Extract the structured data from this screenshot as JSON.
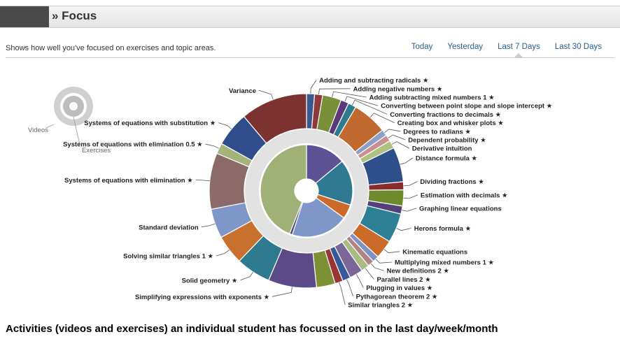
{
  "header": {
    "title": "» Focus"
  },
  "subtitle": "Shows how well you've focused on exercises and topic areas.",
  "tabs": [
    {
      "label": "Today",
      "active": false
    },
    {
      "label": "Yesterday",
      "active": false
    },
    {
      "label": "Last 7 Days",
      "active": true
    },
    {
      "label": "Last 30 Days",
      "active": false
    }
  ],
  "legend": {
    "videos_label": "Videos",
    "exercises_label": "Exercises"
  },
  "caption": "Activities (videos and exercises) an individual student has focussed on in the last day/week/month",
  "colors": {
    "link": "#2a5d8a",
    "header_dark": "#4a4a4a"
  },
  "chart_data": {
    "type": "pie",
    "title": "",
    "outer_ring": [
      {
        "label": "Adding and subtracting radicals ★",
        "value": 1.5,
        "color": "#3a5a8f"
      },
      {
        "label": "Adding negative numbers ★",
        "value": 1.5,
        "color": "#8f3a3a"
      },
      {
        "label": "Adding subtracting mixed numbers 1 ★",
        "value": 3.5,
        "color": "#7a8f3a"
      },
      {
        "label": "Converting between point slope and slope intercept ★",
        "value": 1.5,
        "color": "#5a3a7a"
      },
      {
        "label": "Converting fractions to decimals ★",
        "value": 1.5,
        "color": "#2f7a8f"
      },
      {
        "label": "Creating box and whisker plots ★",
        "value": 6.5,
        "color": "#c06a30"
      },
      {
        "label": "Degrees to radians ★",
        "value": 1.2,
        "color": "#8aa0c8"
      },
      {
        "label": "Dependent probability ★",
        "value": 1.2,
        "color": "#c89090"
      },
      {
        "label": "Derivative intuition",
        "value": 1.5,
        "color": "#b0c080"
      },
      {
        "label": "Distance formula ★",
        "value": 6.5,
        "color": "#2d4f8a"
      },
      {
        "label": "Dividing fractions ★",
        "value": 1.5,
        "color": "#8a2d2d"
      },
      {
        "label": "Estimation with decimals ★",
        "value": 3.0,
        "color": "#6f8a2d"
      },
      {
        "label": "Graphing linear equations",
        "value": 1.5,
        "color": "#54407a"
      },
      {
        "label": "Herons formula ★",
        "value": 5.5,
        "color": "#2d7f96"
      },
      {
        "label": "Kinematic equations",
        "value": 3.5,
        "color": "#cc6a2a"
      },
      {
        "label": "Multiplying mixed numbers 1 ★",
        "value": 1.2,
        "color": "#7c93c4"
      },
      {
        "label": "New definitions 2 ★",
        "value": 1.2,
        "color": "#b08484"
      },
      {
        "label": "Parallel lines 2 ★",
        "value": 1.5,
        "color": "#a8bb84"
      },
      {
        "label": "Plugging in values ★",
        "value": 2.5,
        "color": "#7a6699"
      },
      {
        "label": "Pythagorean theorem 2 ★",
        "value": 1.5,
        "color": "#355a9a"
      },
      {
        "label": "Similar triangles 2 ★",
        "value": 1.5,
        "color": "#9a3535"
      },
      {
        "label": "",
        "value": 3.5,
        "color": "#7d9035"
      },
      {
        "label": "Simplifying expressions with exponents ★",
        "value": 9.0,
        "color": "#5c4a88"
      },
      {
        "label": "Solid geometry ★",
        "value": 6.5,
        "color": "#2e7b90"
      },
      {
        "label": "Solving similar triangles 1 ★",
        "value": 5.5,
        "color": "#c8702d"
      },
      {
        "label": "Standard deviation",
        "value": 5.5,
        "color": "#7f97c8"
      },
      {
        "label": "Systems of equations with elimination ★",
        "value": 10.5,
        "color": "#8c6a6a"
      },
      {
        "label": "Systems of equations with elimination 0.5 ★",
        "value": 2.0,
        "color": "#a4b47c"
      },
      {
        "label": "Systems of equations with substitution ★",
        "value": 6.5,
        "color": "#2e4d8a"
      },
      {
        "label": "Variance",
        "value": 12.5,
        "color": "#7d3232"
      }
    ],
    "inner_ring": [
      {
        "label": "",
        "value": 14,
        "color": "#5c5294"
      },
      {
        "label": "",
        "value": 16,
        "color": "#2f7a92"
      },
      {
        "label": "",
        "value": 5,
        "color": "#cc6a2a"
      },
      {
        "label": "",
        "value": 20,
        "color": "#7f97c8"
      },
      {
        "label": "",
        "value": 1,
        "color": "#5a4a7a"
      },
      {
        "label": "",
        "value": 44,
        "color": "#a0b077"
      }
    ]
  }
}
